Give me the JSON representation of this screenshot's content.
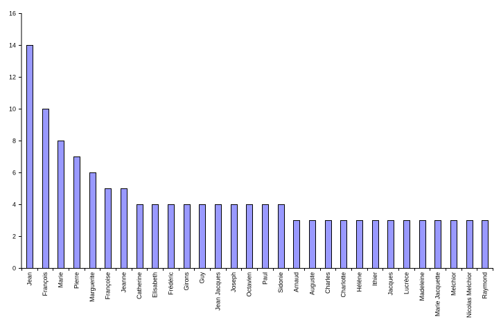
{
  "chart_data": {
    "type": "bar",
    "title": "",
    "xlabel": "",
    "ylabel": "",
    "ylim": [
      0,
      16
    ],
    "yticks": [
      0,
      2,
      4,
      6,
      8,
      10,
      12,
      14,
      16
    ],
    "grid": false,
    "legend": "none",
    "bar_color": "#9999ff",
    "bar_edge_color": "#000000",
    "categories": [
      "Jean",
      "François",
      "Marie",
      "Pierre",
      "Marguerite",
      "Françoise",
      "Jeanne",
      "Catherine",
      "Elisabeth",
      "Frédéric",
      "Girons",
      "Guy",
      "Jean Jacques",
      "Joseph",
      "Octavien",
      "Paul",
      "Sidonie",
      "Arnaud",
      "Auguste",
      "Charles",
      "Charlotte",
      "Hélène",
      "Ithier",
      "Jacques",
      "Lucrèce",
      "Madeleine",
      "Marie Jacquette",
      "Melchior",
      "Nicolas Melchior",
      "Raymond"
    ],
    "values": [
      14,
      10,
      8,
      7,
      6,
      5,
      5,
      4,
      4,
      4,
      4,
      4,
      4,
      4,
      4,
      4,
      4,
      3,
      3,
      3,
      3,
      3,
      3,
      3,
      3,
      3,
      3,
      3,
      3,
      3
    ]
  }
}
